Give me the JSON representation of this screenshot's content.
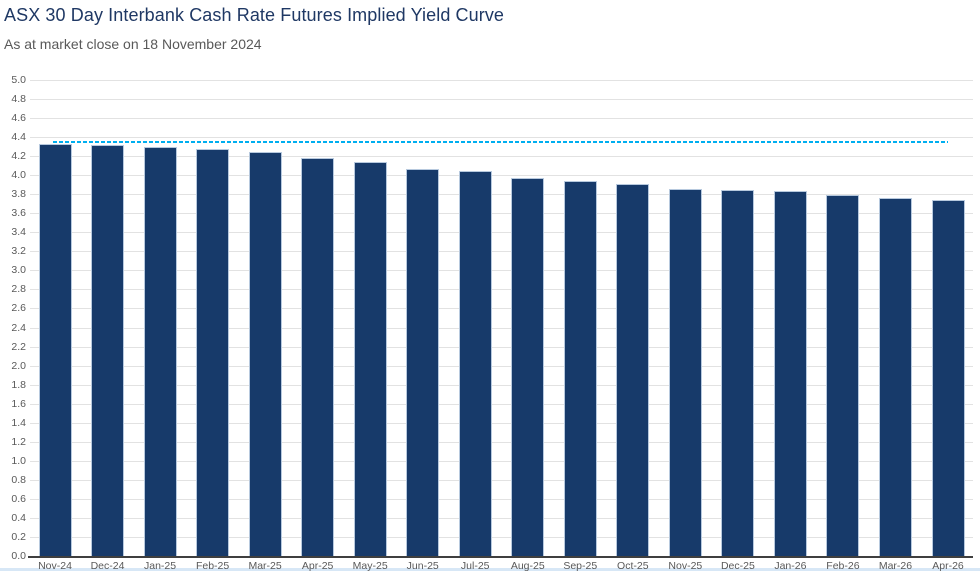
{
  "header": {
    "title": "ASX 30 Day Interbank Cash Rate Futures Implied Yield Curve",
    "subtitle": "As at market close on 18 November 2024"
  },
  "chart_data": {
    "type": "bar",
    "title": "ASX 30 Day Interbank Cash Rate Futures Implied Yield Curve",
    "subtitle": "As at market close on 18 November 2024",
    "categories": [
      "Nov-24",
      "Dec-24",
      "Jan-25",
      "Feb-25",
      "Mar-25",
      "Apr-25",
      "May-25",
      "Jun-25",
      "Jul-25",
      "Aug-25",
      "Sep-25",
      "Oct-25",
      "Nov-25",
      "Dec-25",
      "Jan-26",
      "Feb-26",
      "Mar-26",
      "Apr-26"
    ],
    "values": [
      4.33,
      4.32,
      4.3,
      4.28,
      4.24,
      4.18,
      4.14,
      4.07,
      4.04,
      3.97,
      3.94,
      3.91,
      3.86,
      3.84,
      3.83,
      3.79,
      3.76,
      3.74
    ],
    "xlabel": "",
    "ylabel": "",
    "ylim": [
      0.0,
      5.0
    ],
    "ytick_step": 0.2,
    "ytick_decimals": 1,
    "grid": true,
    "legend": false,
    "reference_line": {
      "value": 4.35,
      "style": "dashed"
    },
    "colors": {
      "bar": "#173A6A",
      "reference_line": "#00AEEF",
      "gridline": "#E2E2E2",
      "axis_line": "#3F3F3F",
      "tick_label": "#595959",
      "title": "#1F3864",
      "subtitle": "#595959",
      "bottom_rule": "#D7E7F6"
    }
  }
}
